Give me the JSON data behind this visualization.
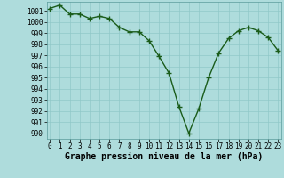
{
  "x": [
    0,
    1,
    2,
    3,
    4,
    5,
    6,
    7,
    8,
    9,
    10,
    11,
    12,
    13,
    14,
    15,
    16,
    17,
    18,
    19,
    20,
    21,
    22,
    23
  ],
  "y": [
    1001.2,
    1001.5,
    1000.7,
    1000.7,
    1000.3,
    1000.5,
    1000.3,
    999.5,
    999.1,
    999.1,
    998.3,
    996.9,
    995.4,
    992.4,
    990.0,
    992.2,
    995.0,
    997.2,
    998.5,
    999.2,
    999.5,
    999.2,
    998.6,
    997.4
  ],
  "line_color": "#1a5c1a",
  "marker": "+",
  "marker_color": "#1a5c1a",
  "bg_color": "#aedcdc",
  "grid_color": "#90c8c8",
  "xlabel": "Graphe pression niveau de la mer (hPa)",
  "ylim": [
    989.5,
    1001.8
  ],
  "yticks": [
    990,
    991,
    992,
    993,
    994,
    995,
    996,
    997,
    998,
    999,
    1000,
    1001
  ],
  "xticks": [
    0,
    1,
    2,
    3,
    4,
    5,
    6,
    7,
    8,
    9,
    10,
    11,
    12,
    13,
    14,
    15,
    16,
    17,
    18,
    19,
    20,
    21,
    22,
    23
  ],
  "tick_fontsize": 5.5,
  "xlabel_fontsize": 7,
  "line_width": 1.0,
  "marker_size": 4
}
